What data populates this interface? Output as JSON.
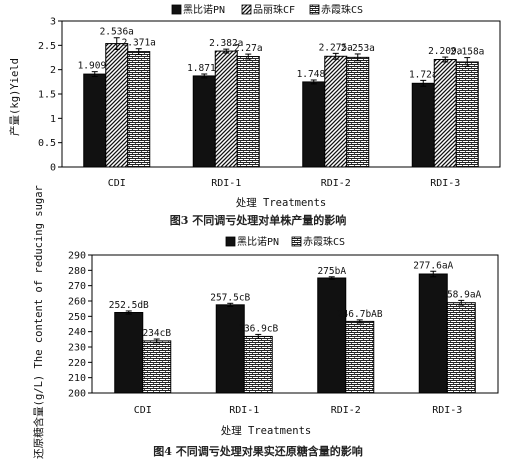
{
  "figures": [
    {
      "caption": "图3  不同调亏处理对单株产量的影响",
      "chart_data": {
        "type": "bar",
        "ylabel": "产量(kg)Yield",
        "xlabel": "处理 Treatments",
        "ylim": [
          0,
          3
        ],
        "ytick_step": 0.5,
        "ytick_labels": [
          "0",
          "0.5",
          "1",
          "1.5",
          "2",
          "2.5",
          "3"
        ],
        "categories": [
          "CDI",
          "RDI-1",
          "RDI-2",
          "RDI-3"
        ],
        "legend_position": "top",
        "series": [
          {
            "name": "黑比诺PN",
            "pattern": "dark",
            "values": [
              1.909,
              1.871,
              1.748,
              1.72
            ],
            "labels": [
              "1.909a",
              "1.871a",
              "1.748a",
              "1.72a"
            ],
            "errors": [
              0.05,
              0.04,
              0.04,
              0.06
            ]
          },
          {
            "name": "品丽珠CF",
            "pattern": "diagonal",
            "values": [
              2.536,
              2.382,
              2.275,
              2.209
            ],
            "labels": [
              "2.536a",
              "2.382a",
              "2.275a",
              "2.209a"
            ],
            "errors": [
              0.12,
              0.04,
              0.06,
              0.05
            ]
          },
          {
            "name": "赤霞珠CS",
            "pattern": "brick",
            "values": [
              2.371,
              2.27,
              2.253,
              2.158
            ],
            "labels": [
              "2.371a",
              "2.27a",
              "2.253a",
              "2.158a"
            ],
            "errors": [
              0.06,
              0.05,
              0.07,
              0.09
            ]
          }
        ]
      }
    },
    {
      "caption": "图4  不同调亏处理对果实还原糖含量的影响",
      "chart_data": {
        "type": "bar",
        "ylabel": "还原糖含量(g/L) The content of reducing sugar",
        "xlabel": "处理 Treatments",
        "ylim": [
          200,
          290
        ],
        "ytick_step": 10,
        "ytick_labels": [
          "200",
          "210",
          "220",
          "230",
          "240",
          "250",
          "260",
          "270",
          "280",
          "290"
        ],
        "categories": [
          "CDI",
          "RDI-1",
          "RDI-2",
          "RDI-3"
        ],
        "legend_position": "top",
        "series": [
          {
            "name": "黑比诺PN",
            "pattern": "dark",
            "values": [
              252.5,
              257.5,
              275,
              277.6
            ],
            "labels": [
              "252.5dB",
              "257.5cB",
              "275bA",
              "277.6aA"
            ],
            "errors": [
              1.0,
              1.0,
              0.8,
              1.8
            ]
          },
          {
            "name": "赤霞珠CS",
            "pattern": "brick",
            "values": [
              234,
              236.9,
              246.7,
              258.9
            ],
            "labels": [
              "234cB",
              "236.9cB",
              "246.7bAB",
              "258.9aA"
            ],
            "errors": [
              1.2,
              1.3,
              1.0,
              1.5
            ]
          }
        ]
      }
    }
  ]
}
